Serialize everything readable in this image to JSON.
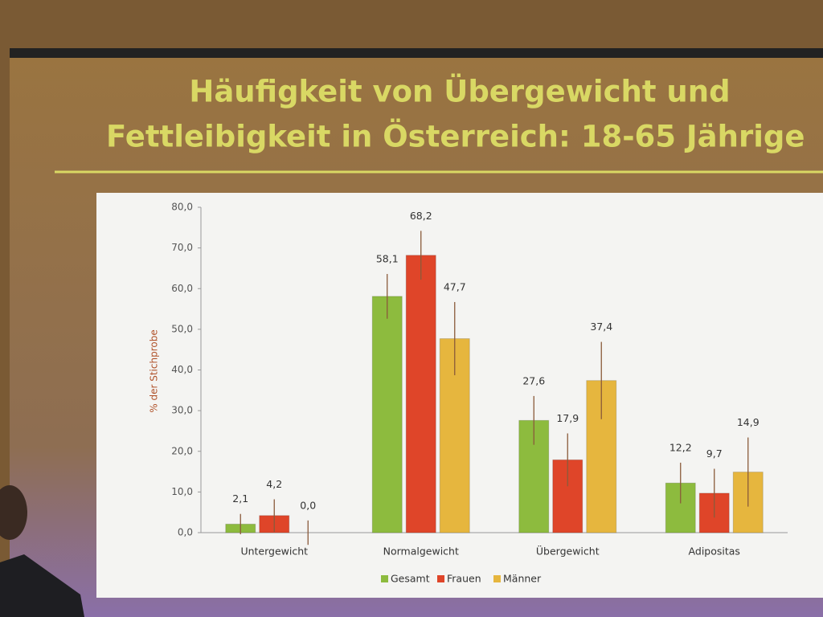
{
  "chart_data": {
    "type": "bar",
    "title_lines": [
      "Häufigkeit von Übergewicht und",
      "Fettleibigkeit in Österreich: 18-65 Jährige"
    ],
    "ylabel": "% der Stichprobe",
    "categories": [
      "Untergewicht",
      "Normalgewicht",
      "Übergewicht",
      "Adipositas"
    ],
    "series": [
      {
        "name": "Gesamt",
        "color": "#8dbb3e",
        "values": [
          2.1,
          58.1,
          27.6,
          12.2
        ],
        "value_labels": [
          "2,1",
          "58,1",
          "27,6",
          "12,2"
        ],
        "errors": [
          2.5,
          5.5,
          6,
          5
        ]
      },
      {
        "name": "Frauen",
        "color": "#df4529",
        "values": [
          4.2,
          68.2,
          17.9,
          9.7
        ],
        "value_labels": [
          "4,2",
          "68,2",
          "17,9",
          "9,7"
        ],
        "errors": [
          4,
          6,
          6.5,
          6
        ]
      },
      {
        "name": "Männer",
        "color": "#e6b63e",
        "values": [
          0.0,
          47.7,
          37.4,
          14.9
        ],
        "value_labels": [
          "0,0",
          "47,7",
          "37,4",
          "14,9"
        ],
        "errors": [
          3,
          9,
          9.5,
          8.5
        ]
      }
    ],
    "ylim": [
      0,
      80
    ],
    "yticks": [
      {
        "value": 0,
        "label": "0,0"
      },
      {
        "value": 10,
        "label": "10,0"
      },
      {
        "value": 20,
        "label": "20,0"
      },
      {
        "value": 30,
        "label": "30,0"
      },
      {
        "value": 40,
        "label": "40,0"
      },
      {
        "value": 50,
        "label": "50,0"
      },
      {
        "value": 60,
        "label": "60,0"
      },
      {
        "value": 70,
        "label": "70,0"
      },
      {
        "value": 80,
        "label": "80,0"
      }
    ],
    "legend": "bottom"
  }
}
